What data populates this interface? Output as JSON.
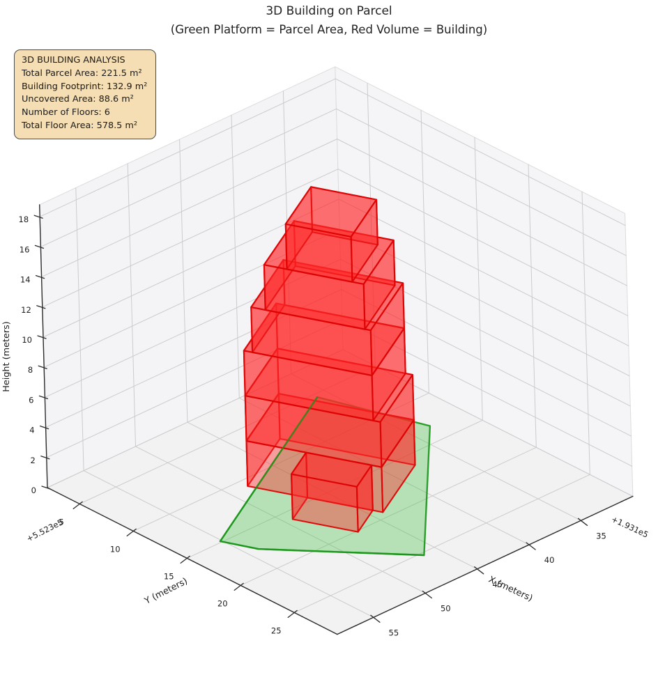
{
  "info_box": {
    "title": "3D BUILDING ANALYSIS",
    "lines": [
      "Total Parcel Area: 221.5 m²",
      "Building Footprint: 132.9 m²",
      "Uncovered Area: 88.6 m²",
      "Number of Floors: 6",
      "Total Floor Area: 578.5 m²"
    ]
  },
  "chart_data": {
    "type": "3d-building-plot",
    "title": "3D Building on Parcel",
    "subtitle": "(Green Platform = Parcel Area, Red Volume = Building)",
    "legend_meaning": {
      "green": "Parcel Area",
      "red": "Building"
    },
    "stats": {
      "total_parcel_area_m2": 221.5,
      "building_footprint_m2": 132.9,
      "uncovered_area_m2": 88.6,
      "number_of_floors": 6,
      "total_floor_area_m2": 578.5
    },
    "axes": {
      "x": {
        "label": "X (meters)",
        "offset_text": "+1.931e5",
        "ticks": [
          55,
          50,
          45,
          40,
          35
        ],
        "range": [
          30,
          58.5
        ]
      },
      "y": {
        "label": "Y (meters)",
        "offset_text": "+5.523e5",
        "ticks": [
          5,
          10,
          15,
          20,
          25
        ],
        "range": [
          2,
          29
        ]
      },
      "z": {
        "label": "Height (meters)",
        "ticks": [
          0,
          2,
          4,
          6,
          8,
          10,
          12,
          14,
          16,
          18
        ],
        "range": [
          0,
          18.8
        ]
      },
      "grid": true
    },
    "parcel": {
      "z": 0,
      "face_color": "#3cbe3c",
      "edge_color": "#189618",
      "vertices": [
        [
          55.15,
          14.86
        ],
        [
          54.0,
          17.3
        ],
        [
          46.3,
          25.3
        ],
        [
          33.2,
          13.2
        ],
        [
          36.0,
          5.4
        ]
      ],
      "front_edge_indices": [
        2,
        1,
        0,
        4
      ]
    },
    "building": {
      "face_color": "#ff2828",
      "edge_color": "#de0404",
      "floor_height_m": 3,
      "num_floors": 6,
      "prisms": [
        {
          "name": "floor-1",
          "z0": 0,
          "h": 3,
          "footprint": [
            [
              48.3,
              10.8
            ],
            [
              44.12,
              19.35
            ],
            [
              37.82,
              16.27
            ],
            [
              42.0,
              7.72
            ]
          ]
        },
        {
          "name": "ground-wing",
          "z0": 0,
          "h": 3,
          "footprint": [
            [
              46.45,
              14.58
            ],
            [
              44.43,
              18.72
            ],
            [
              47.31,
              20.13
            ],
            [
              49.33,
              15.99
            ]
          ]
        },
        {
          "name": "floor-2",
          "z0": 3,
          "h": 3,
          "footprint": [
            [
              48.3,
              10.8
            ],
            [
              44.12,
              19.35
            ],
            [
              37.82,
              16.27
            ],
            [
              42.0,
              7.72
            ]
          ]
        },
        {
          "name": "floor-3",
          "z0": 6,
          "h": 3,
          "footprint": [
            [
              48.3,
              10.8
            ],
            [
              44.34,
              18.9
            ],
            [
              38.04,
              15.82
            ],
            [
              42.0,
              7.72
            ]
          ]
        },
        {
          "name": "floor-4",
          "z0": 9,
          "h": 3,
          "footprint": [
            [
              48.04,
              11.34
            ],
            [
              44.34,
              18.9
            ],
            [
              38.04,
              15.82
            ],
            [
              41.74,
              8.26
            ]
          ]
        },
        {
          "name": "floor-5",
          "z0": 12,
          "h": 3,
          "footprint": [
            [
              47.6,
              12.24
            ],
            [
              44.52,
              18.54
            ],
            [
              38.67,
              15.68
            ],
            [
              41.75,
              9.38
            ]
          ]
        },
        {
          "name": "floor-6",
          "z0": 15,
          "h": 3,
          "footprint": [
            [
              46.89,
              13.68
            ],
            [
              44.87,
              17.82
            ],
            [
              39.92,
              15.4
            ],
            [
              41.94,
              11.26
            ]
          ]
        }
      ]
    }
  }
}
